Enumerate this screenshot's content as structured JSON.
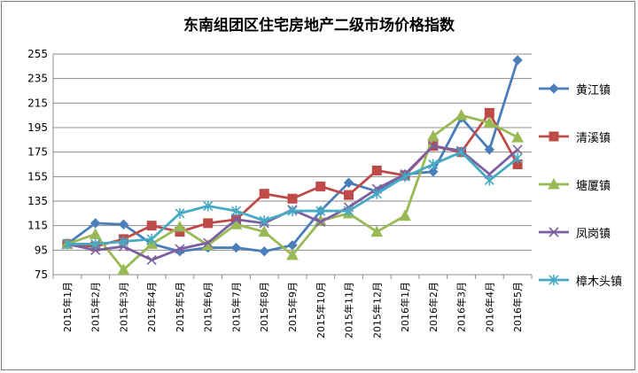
{
  "chart_data": {
    "type": "line",
    "title": "东南组团区住宅房地产二级市场价格指数",
    "xlabel": "",
    "ylabel": "",
    "ylim": [
      75,
      255
    ],
    "yticks": [
      75,
      95,
      115,
      135,
      155,
      175,
      195,
      215,
      235,
      255
    ],
    "grid": true,
    "legend_position": "right",
    "categories": [
      "2015年1月",
      "2015年2月",
      "2015年3月",
      "2015年4月",
      "2015年5月",
      "2015年6月",
      "2015年7月",
      "2015年8月",
      "2015年9月",
      "2015年10月",
      "2015年11月",
      "2015年12月",
      "2016年1月",
      "2016年2月",
      "2016年3月",
      "2016年4月",
      "2016年5月"
    ],
    "series": [
      {
        "name": "黄江镇",
        "color": "#4a7ebb",
        "marker": "diamond",
        "values": [
          100,
          117,
          116,
          100,
          94,
          97,
          97,
          94,
          99,
          127,
          150,
          143,
          157,
          159,
          203,
          177,
          250
        ]
      },
      {
        "name": "清溪镇",
        "color": "#be4b48",
        "marker": "square",
        "values": [
          100,
          98,
          104,
          115,
          110,
          117,
          120,
          141,
          137,
          147,
          140,
          160,
          156,
          180,
          175,
          207,
          165
        ]
      },
      {
        "name": "塘厦镇",
        "color": "#98b954",
        "marker": "triangle",
        "values": [
          100,
          108,
          79,
          100,
          114,
          99,
          116,
          110,
          91,
          119,
          125,
          110,
          123,
          188,
          205,
          199,
          187
        ]
      },
      {
        "name": "凤岗镇",
        "color": "#7d5fa0",
        "marker": "x",
        "values": [
          100,
          95,
          98,
          87,
          96,
          101,
          120,
          117,
          128,
          118,
          130,
          145,
          157,
          180,
          176,
          157,
          177
        ]
      },
      {
        "name": "樟木头镇",
        "color": "#46aac5",
        "marker": "star",
        "values": [
          100,
          100,
          102,
          104,
          125,
          131,
          127,
          119,
          127,
          127,
          127,
          141,
          155,
          165,
          175,
          152,
          170
        ]
      }
    ]
  }
}
